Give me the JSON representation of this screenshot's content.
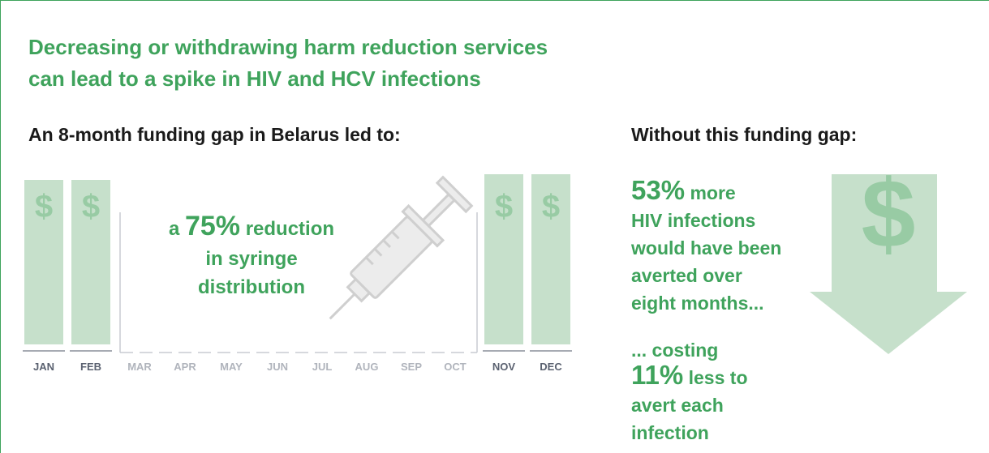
{
  "header": {
    "title_lines": [
      "Decreasing or withdrawing harm reduction services",
      "can lead to a spike in HIV and HCV infections"
    ]
  },
  "left": {
    "heading": "An 8-month funding gap in Belarus led to:",
    "currency_symbol": "$",
    "months": [
      "JAN",
      "FEB",
      "MAR",
      "APR",
      "MAY",
      "JUN",
      "JUL",
      "AUG",
      "SEP",
      "OCT",
      "NOV",
      "DEC"
    ],
    "callout": {
      "prefix": "a",
      "figure": "75%",
      "suffix": "reduction",
      "lines": [
        "in syringe",
        "distribution"
      ]
    }
  },
  "right": {
    "heading": "Without this funding gap:",
    "currency_symbol": "$",
    "statement_1": {
      "figure": "53%",
      "suffix": "more",
      "lines": [
        "HIV infections",
        "would have been",
        "averted over",
        "eight months..."
      ]
    },
    "statement_2": {
      "prefix": "... costing",
      "figure": "11%",
      "suffix": "less to",
      "lines": [
        "avert each",
        "infection"
      ]
    }
  }
}
